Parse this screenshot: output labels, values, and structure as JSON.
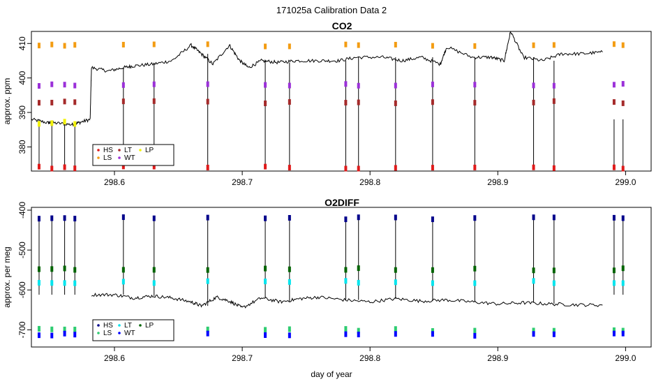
{
  "figure": {
    "supertitle": "171025a   Calibration Data 2"
  },
  "chart_data": [
    {
      "type": "line",
      "title": "CO2",
      "xlabel": "",
      "ylabel": "approx. ppm",
      "xlim": [
        298.535,
        299.02
      ],
      "ylim": [
        373.0,
        413.5
      ],
      "x_ticks": [
        298.6,
        298.7,
        298.8,
        298.9,
        299.0
      ],
      "x_tick_labels": [
        "298.6",
        "298.7",
        "298.8",
        "298.9",
        "299.0"
      ],
      "y_ticks": [
        380,
        390,
        400,
        410
      ],
      "y_tick_labels": [
        "380",
        "390",
        "400",
        "410"
      ],
      "grid": false,
      "legend_position": "bottom-left",
      "baseline_line": {
        "x": [
          298.535,
          298.548,
          298.552,
          298.566,
          298.572,
          298.581,
          298.582,
          298.595,
          298.607,
          298.615,
          298.63,
          298.645,
          298.66,
          298.668,
          298.677,
          298.69,
          298.698,
          298.705,
          298.715,
          298.728,
          298.742,
          298.76,
          298.775,
          298.79,
          298.81,
          298.825,
          298.84,
          298.855,
          298.86,
          298.88,
          298.895,
          298.905,
          298.91,
          298.92,
          298.935,
          298.95,
          298.965,
          298.982
        ],
        "y": [
          388.0,
          387.0,
          387.0,
          386.5,
          387.0,
          388.0,
          403.0,
          402.0,
          403.0,
          403.5,
          404.0,
          405.0,
          409.5,
          407.0,
          404.0,
          409.5,
          405.0,
          403.0,
          405.0,
          404.5,
          405.0,
          405.0,
          405.0,
          406.0,
          406.0,
          405.0,
          406.0,
          404.0,
          409.0,
          406.0,
          406.0,
          405.0,
          413.5,
          406.0,
          405.0,
          407.0,
          407.0,
          407.5
        ]
      },
      "calibration_excursions_x": [
        298.541,
        298.551,
        298.561,
        298.569,
        298.607,
        298.631,
        298.673,
        298.718,
        298.737,
        298.781,
        298.791,
        298.82,
        298.849,
        298.882,
        298.928,
        298.944,
        298.991,
        298.998
      ],
      "series": [
        {
          "name": "HS",
          "color": "#DF1A1A",
          "y_level": 374.0
        },
        {
          "name": "LS",
          "color": "#F39C12",
          "y_level": 409.5
        },
        {
          "name": "LT",
          "color": "#A52A2A",
          "y_level": 393.0
        },
        {
          "name": "WT",
          "color": "#9B30D9",
          "y_level": 398.0
        },
        {
          "name": "LP",
          "color": "#F2F20A",
          "y_level": 387.0
        }
      ]
    },
    {
      "type": "line",
      "title": "O2DIFF",
      "xlabel": "day of year",
      "ylabel": "approx. per meg",
      "xlim": [
        298.535,
        299.02
      ],
      "ylim": [
        -743,
        -393
      ],
      "x_ticks": [
        298.6,
        298.7,
        298.8,
        298.9,
        299.0
      ],
      "x_tick_labels": [
        "298.6",
        "298.7",
        "298.8",
        "298.9",
        "299.0"
      ],
      "y_ticks": [
        -700,
        -600,
        -500,
        -400
      ],
      "y_tick_labels": [
        "-700",
        "-600",
        "-500",
        "-400"
      ],
      "grid": false,
      "legend_position": "bottom-left",
      "baseline_line": {
        "x": [
          298.582,
          298.6,
          298.615,
          298.63,
          298.645,
          298.66,
          298.668,
          298.68,
          298.69,
          298.7,
          298.715,
          298.73,
          298.745,
          298.76,
          298.78,
          298.8,
          298.82,
          298.84,
          298.86,
          298.88,
          298.9,
          298.92,
          298.94,
          298.96,
          298.982
        ],
        "y": [
          -612,
          -612,
          -620,
          -615,
          -620,
          -630,
          -640,
          -618,
          -628,
          -645,
          -620,
          -630,
          -622,
          -618,
          -625,
          -630,
          -622,
          -628,
          -625,
          -630,
          -635,
          -632,
          -635,
          -637,
          -638
        ]
      },
      "calibration_excursions_x": [
        298.541,
        298.551,
        298.561,
        298.569,
        298.607,
        298.631,
        298.673,
        298.718,
        298.737,
        298.781,
        298.791,
        298.82,
        298.849,
        298.882,
        298.928,
        298.944,
        298.991,
        298.998
      ],
      "series": [
        {
          "name": "HS",
          "color": "#00008B",
          "y_level": -420
        },
        {
          "name": "LS",
          "color": "#2ECC71",
          "y_level": -700
        },
        {
          "name": "LT",
          "color": "#00E5EE",
          "y_level": -580
        },
        {
          "name": "WT",
          "color": "#0000FF",
          "y_level": -712
        },
        {
          "name": "LP",
          "color": "#006400",
          "y_level": -548
        }
      ]
    }
  ]
}
